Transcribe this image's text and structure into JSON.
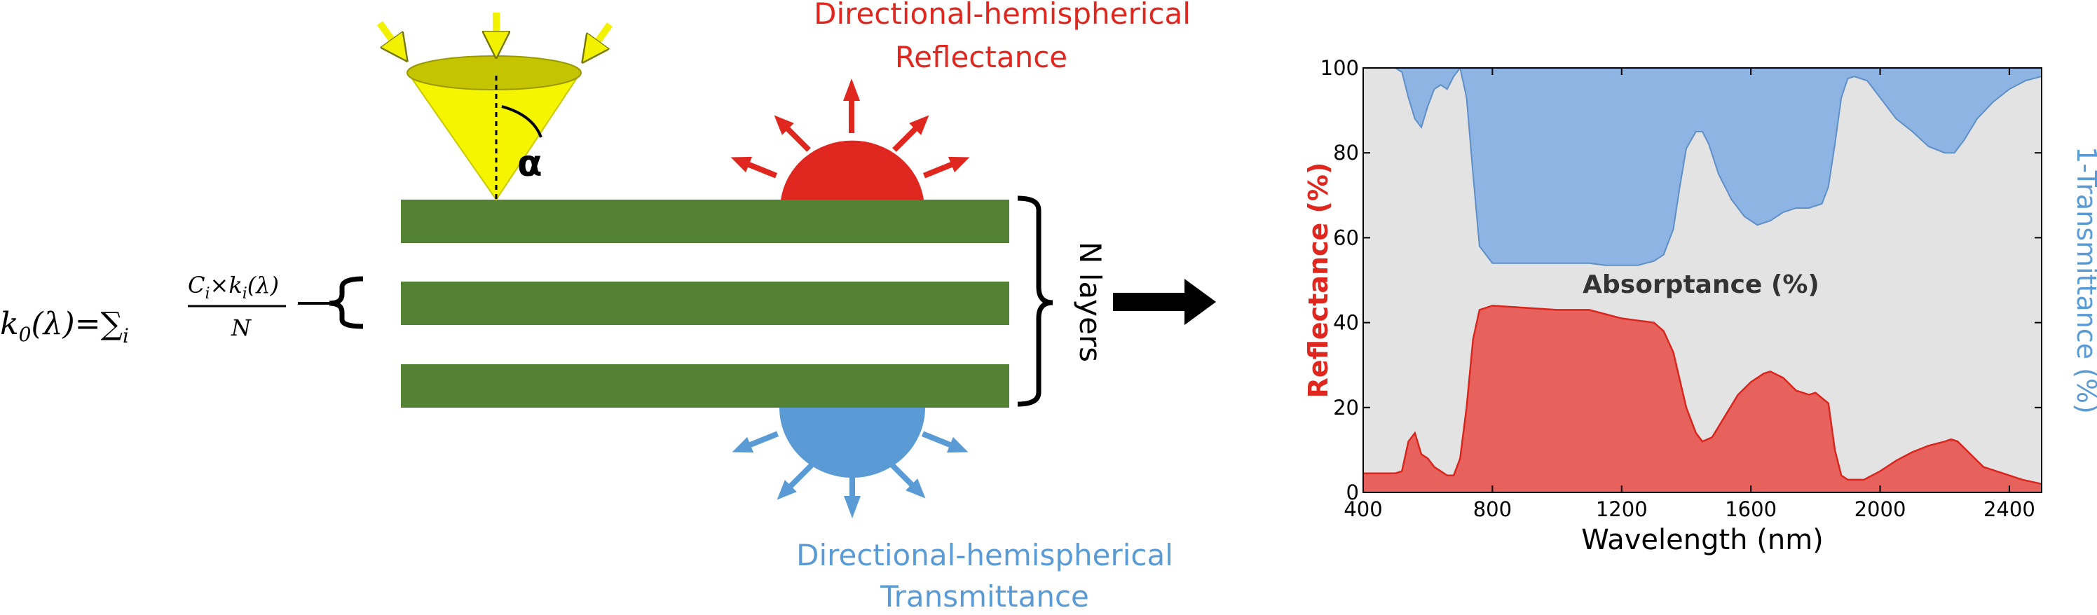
{
  "diagram": {
    "formula": {
      "lhs": "k",
      "lhs_sub": "0",
      "lhs_arg": "(λ)=",
      "sum": "∑",
      "sum_sub": "i",
      "numerator_c": "C",
      "numerator_c_sub": "i",
      "times": "×k",
      "numerator_k_sub": "i",
      "numerator_arg": "(λ)",
      "denominator": "N"
    },
    "angle_label": "α",
    "layers_label": "N layers",
    "reflectance_label_line1": "Directional-hemispherical",
    "reflectance_label_line2": "Reflectance",
    "transmittance_label_line1": "Directional-hemispherical",
    "transmittance_label_line2": "Transmittance",
    "colors": {
      "leaf_green": "#548235",
      "cone_yellow": "#f5f500",
      "arrow_yellow": "#f2f200",
      "reflect_red": "#e0271f",
      "transmit_blue": "#5b9bd5"
    }
  },
  "chart_data": {
    "type": "area",
    "xlabel": "Wavelength (nm)",
    "ylabel_left_part1": "Reflectance ",
    "ylabel_left_part2": "(%)",
    "ylabel_right": "1-Transmittance (%)",
    "center_label": "Absorptance (%)",
    "xlim": [
      400,
      2500
    ],
    "ylim": [
      0,
      100
    ],
    "xticks": [
      "400",
      "800",
      "1200",
      "1600",
      "2000",
      "2400"
    ],
    "yticks": [
      "0",
      "20",
      "40",
      "60",
      "80",
      "100"
    ],
    "series": [
      {
        "name": "Reflectance (%)",
        "color": "#e8625d",
        "x": [
          400,
          500,
          520,
          540,
          560,
          580,
          600,
          620,
          640,
          660,
          680,
          700,
          720,
          740,
          760,
          800,
          900,
          1000,
          1100,
          1150,
          1200,
          1250,
          1300,
          1330,
          1360,
          1400,
          1430,
          1450,
          1480,
          1520,
          1560,
          1600,
          1640,
          1660,
          1700,
          1740,
          1780,
          1800,
          1840,
          1860,
          1880,
          1900,
          1950,
          2000,
          2050,
          2100,
          2150,
          2200,
          2220,
          2240,
          2280,
          2320,
          2380,
          2440,
          2500
        ],
        "values": [
          4.5,
          4.5,
          5,
          12,
          14,
          9,
          8,
          6,
          5,
          4,
          4,
          8,
          20,
          36,
          43,
          44,
          43.5,
          43,
          43,
          42,
          41,
          40.5,
          40,
          38,
          33,
          20,
          14,
          12,
          13,
          18,
          23,
          26,
          28,
          28.5,
          27,
          24,
          23,
          23.5,
          21,
          10,
          4,
          3,
          3,
          5,
          7.5,
          9.5,
          11,
          12,
          12.5,
          12,
          9,
          6,
          4.5,
          3,
          2
        ]
      },
      {
        "name": "1-Transmittance (%)",
        "color": "#8db4e2",
        "x": [
          400,
          450,
          500,
          520,
          540,
          560,
          580,
          600,
          620,
          640,
          660,
          680,
          700,
          720,
          740,
          760,
          800,
          900,
          1000,
          1100,
          1150,
          1200,
          1250,
          1300,
          1330,
          1360,
          1380,
          1400,
          1430,
          1450,
          1470,
          1500,
          1540,
          1580,
          1620,
          1660,
          1700,
          1740,
          1780,
          1800,
          1820,
          1840,
          1860,
          1880,
          1900,
          1920,
          1960,
          2000,
          2050,
          2100,
          2150,
          2200,
          2230,
          2260,
          2300,
          2350,
          2400,
          2450,
          2500
        ],
        "values": [
          100,
          100,
          100,
          99,
          93,
          88,
          86,
          91,
          95,
          96,
          95,
          98,
          100,
          93,
          75,
          58,
          54,
          54,
          54,
          54,
          53.5,
          53.5,
          53.5,
          54.5,
          56,
          62,
          72,
          81,
          85,
          85,
          82,
          75,
          69,
          65,
          63,
          64,
          66,
          67,
          67,
          67.5,
          68,
          72,
          82,
          93,
          97.5,
          98,
          97,
          93,
          88,
          85,
          81.5,
          80,
          80,
          83,
          88,
          92,
          95,
          97,
          98
        ]
      }
    ],
    "background_color": "#e3e3e3"
  }
}
